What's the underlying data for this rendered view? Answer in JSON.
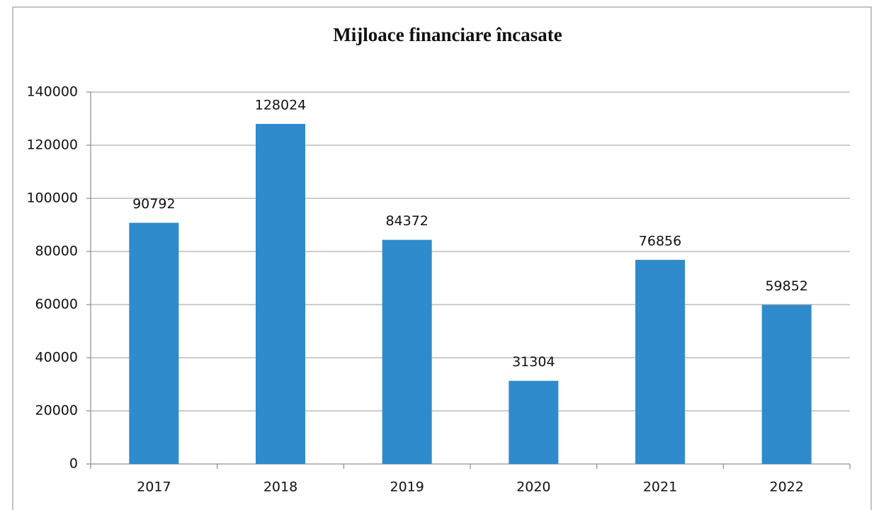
{
  "chart_data": {
    "type": "bar",
    "title": "Mijloace financiare încasate",
    "categories": [
      "2017",
      "2018",
      "2019",
      "2020",
      "2021",
      "2022"
    ],
    "values": [
      90792,
      128024,
      84372,
      31304,
      76856,
      59852
    ],
    "color": "#2f8bcb",
    "ylim": [
      0,
      140000
    ],
    "yticks": [
      0,
      20000,
      40000,
      60000,
      80000,
      100000,
      120000,
      140000
    ],
    "grid": true
  }
}
